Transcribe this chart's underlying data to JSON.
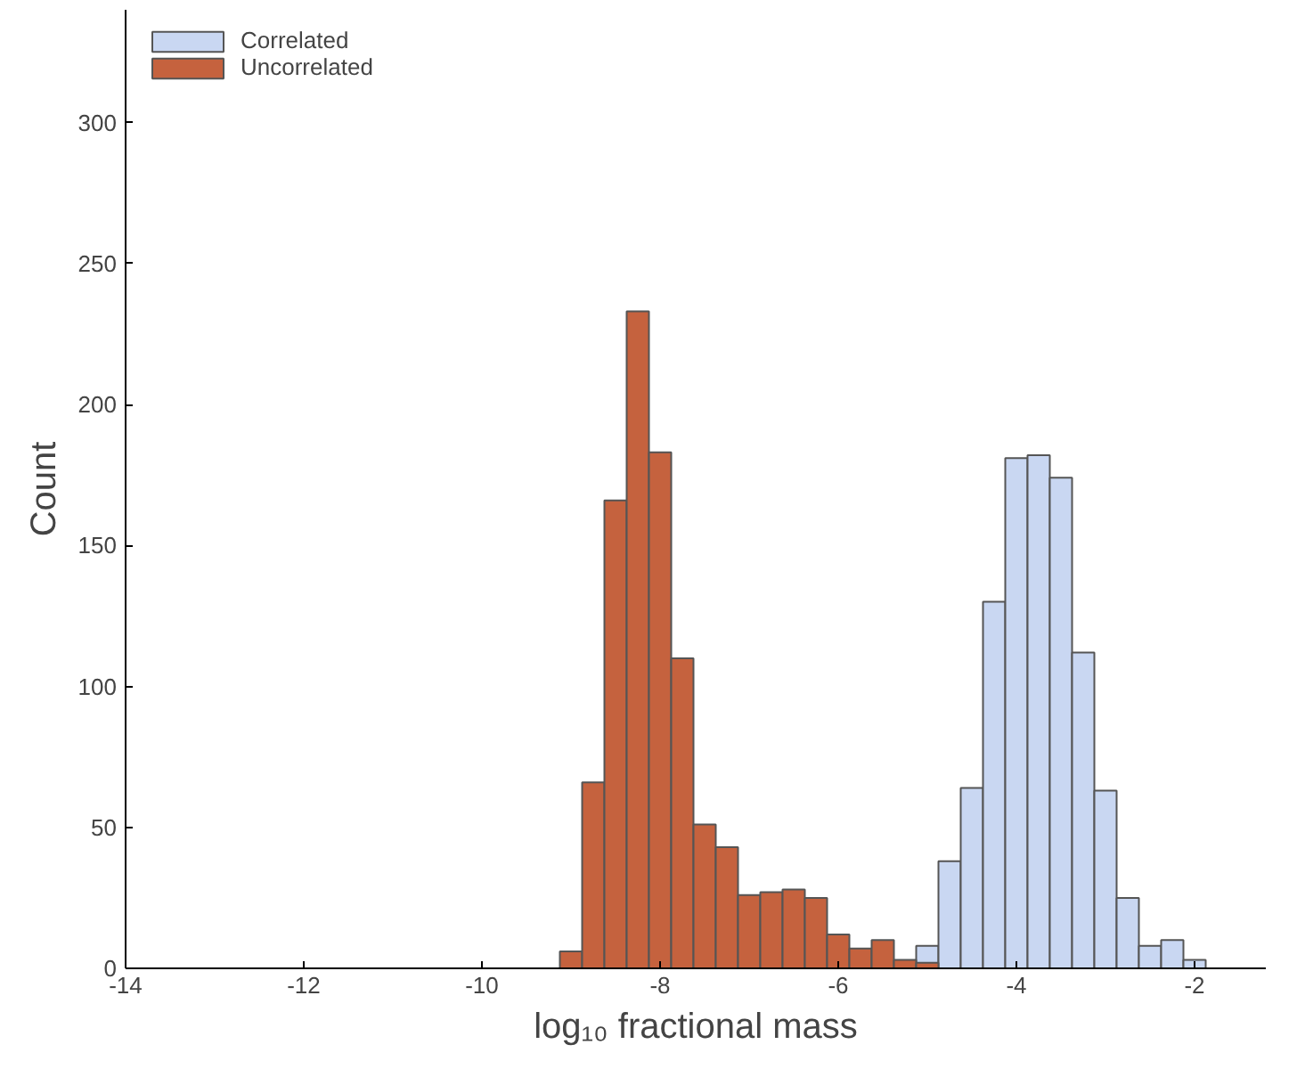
{
  "chart_data": {
    "type": "histogram",
    "xlabel": "log₁₀ fractional mass",
    "ylabel": "Count",
    "xlim": [
      -14,
      -1.2
    ],
    "xticks": [
      {
        "value": -14,
        "label": "-14"
      },
      {
        "value": -12,
        "label": "-12"
      },
      {
        "value": -10,
        "label": "-10"
      },
      {
        "value": -8,
        "label": "-8"
      },
      {
        "value": -6,
        "label": "-6"
      },
      {
        "value": -4,
        "label": "-4"
      },
      {
        "value": -2,
        "label": "-2"
      }
    ],
    "ylim": [
      0,
      340
    ],
    "yticks": [
      0,
      50,
      100,
      150,
      200,
      250,
      300
    ],
    "grid": false,
    "legend": "top left",
    "bins": [
      -9.125,
      -8.875,
      -8.625,
      -8.375,
      -8.125,
      -7.875,
      -7.625,
      -7.375,
      -7.125,
      -6.875,
      -6.625,
      -6.375,
      -6.125,
      -5.875,
      -5.625,
      -5.375,
      -5.125,
      -4.875,
      -4.625,
      -4.375,
      -4.125,
      -3.875,
      -3.625,
      -3.375,
      -3.125,
      -2.875,
      -2.625,
      -2.375,
      -2.125,
      -1.875
    ],
    "series": [
      {
        "name": "Correlated",
        "color": "#c9d7f2",
        "values": [
          null,
          null,
          null,
          null,
          null,
          null,
          null,
          null,
          null,
          null,
          null,
          null,
          null,
          null,
          null,
          null,
          8,
          38,
          64,
          130,
          181,
          182,
          174,
          112,
          63,
          25,
          8,
          10,
          3
        ]
      },
      {
        "name": "Uncorrelated",
        "color": "#c5623e",
        "values": [
          6,
          66,
          166,
          233,
          183,
          110,
          51,
          43,
          26,
          27,
          28,
          25,
          12,
          7,
          10,
          3,
          2,
          null,
          null,
          null,
          null,
          null,
          null,
          null,
          null,
          null,
          null,
          null,
          null
        ]
      }
    ]
  }
}
